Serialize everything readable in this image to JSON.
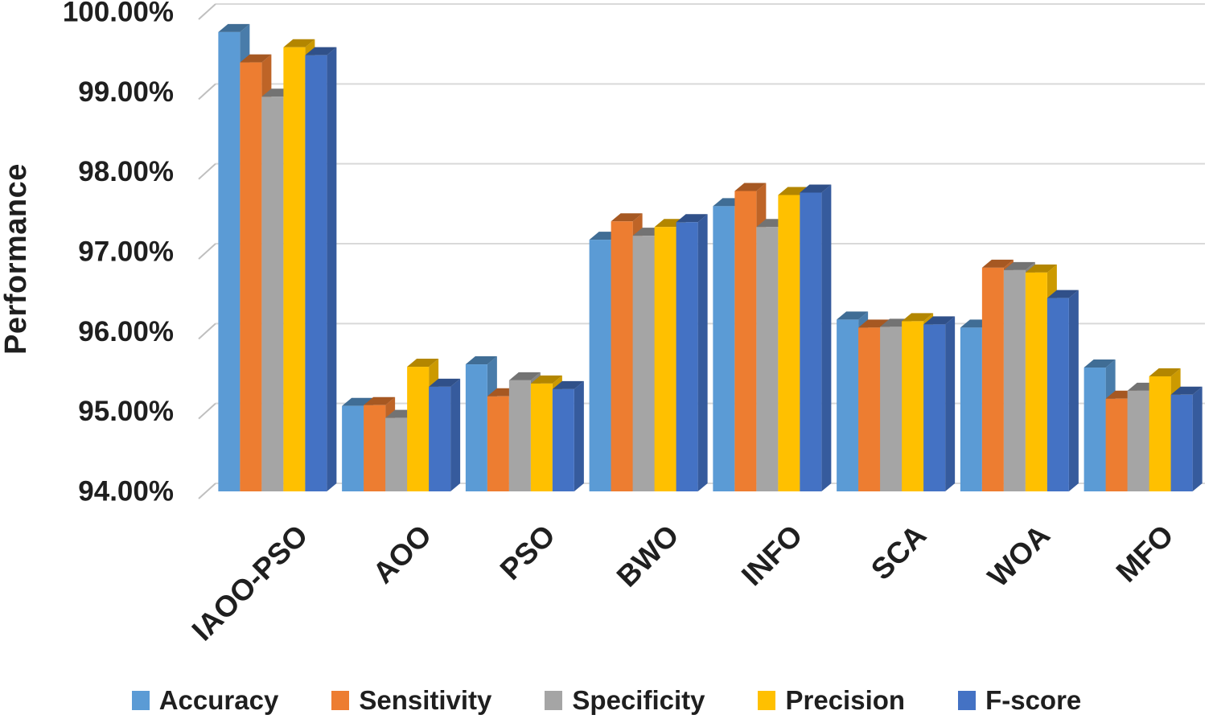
{
  "figure": {
    "background_color": "#ffffff",
    "text_color": "#1f1f1f",
    "gridline_color": "#d9d9d9",
    "tick_color": "#bfbfbf"
  },
  "chart_data": {
    "type": "bar",
    "subtype": "pseudo-3d-clustered-column",
    "title": "",
    "xlabel": "",
    "ylabel": "Performance",
    "categories": [
      "IAOO-PSO",
      "AOO",
      "PSO",
      "BWO",
      "INFO",
      "SCA",
      "WOA",
      "MFO"
    ],
    "series": [
      {
        "name": "Accuracy",
        "color": "#5B9BD5",
        "values": [
          99.75,
          95.07,
          95.59,
          97.15,
          97.57,
          96.15,
          96.05,
          95.55
        ]
      },
      {
        "name": "Sensitivity",
        "color": "#ED7D31",
        "values": [
          99.37,
          95.08,
          95.19,
          97.38,
          97.76,
          96.05,
          96.8,
          95.16
        ]
      },
      {
        "name": "Specificity",
        "color": "#A5A5A5",
        "values": [
          98.94,
          94.92,
          95.39,
          97.2,
          97.31,
          96.06,
          96.77,
          95.26
        ]
      },
      {
        "name": "Precision",
        "color": "#FFC000",
        "values": [
          99.56,
          95.56,
          95.35,
          97.31,
          97.71,
          96.13,
          96.74,
          95.44
        ]
      },
      {
        "name": "F-score",
        "color": "#4472C4",
        "values": [
          99.46,
          95.31,
          95.28,
          97.37,
          97.74,
          96.09,
          96.42,
          95.21
        ]
      }
    ],
    "ylim": [
      94,
      100
    ],
    "ytick_labels": [
      "94.00%",
      "95.00%",
      "96.00%",
      "97.00%",
      "98.00%",
      "99.00%",
      "100.00%"
    ],
    "grid": true,
    "legend_position": "bottom"
  }
}
